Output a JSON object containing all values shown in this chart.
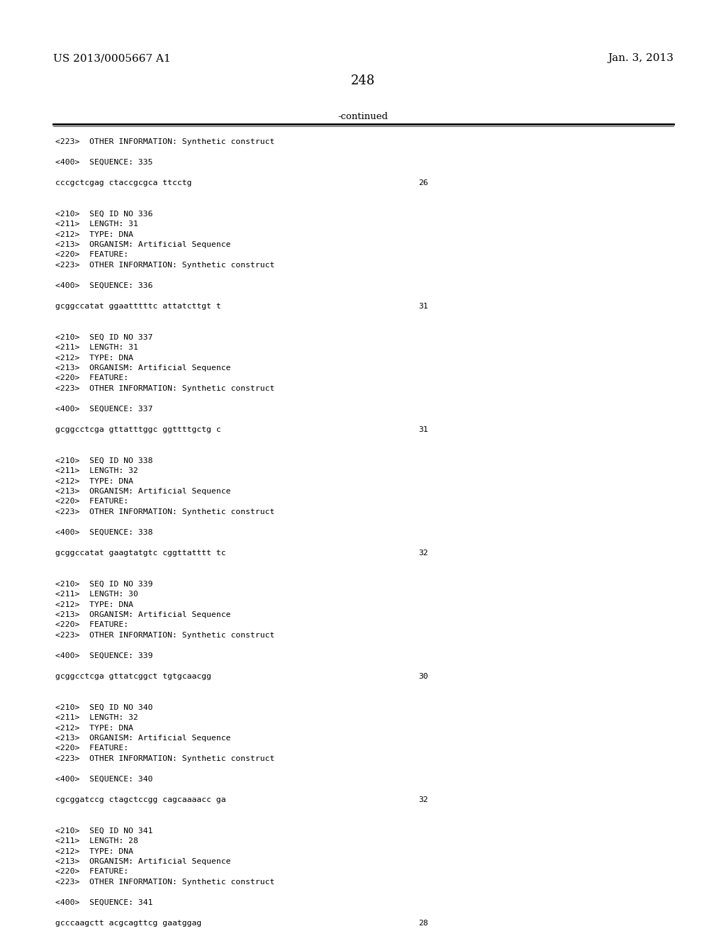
{
  "background_color": "#ffffff",
  "header_left": "US 2013/0005667 A1",
  "header_right": "Jan. 3, 2013",
  "page_number": "248",
  "continued_text": "-continued",
  "lines": [
    [
      "<223>  OTHER INFORMATION: Synthetic construct",
      false,
      null
    ],
    [
      "",
      false,
      null
    ],
    [
      "<400>  SEQUENCE: 335",
      false,
      null
    ],
    [
      "",
      false,
      null
    ],
    [
      "cccgctcgag ctaccgcgca ttcctg",
      false,
      "26"
    ],
    [
      "",
      false,
      null
    ],
    [
      "",
      false,
      null
    ],
    [
      "<210>  SEQ ID NO 336",
      false,
      null
    ],
    [
      "<211>  LENGTH: 31",
      false,
      null
    ],
    [
      "<212>  TYPE: DNA",
      false,
      null
    ],
    [
      "<213>  ORGANISM: Artificial Sequence",
      false,
      null
    ],
    [
      "<220>  FEATURE:",
      false,
      null
    ],
    [
      "<223>  OTHER INFORMATION: Synthetic construct",
      false,
      null
    ],
    [
      "",
      false,
      null
    ],
    [
      "<400>  SEQUENCE: 336",
      false,
      null
    ],
    [
      "",
      false,
      null
    ],
    [
      "gcggccatat ggaatttttc attatcttgt t",
      false,
      "31"
    ],
    [
      "",
      false,
      null
    ],
    [
      "",
      false,
      null
    ],
    [
      "<210>  SEQ ID NO 337",
      false,
      null
    ],
    [
      "<211>  LENGTH: 31",
      false,
      null
    ],
    [
      "<212>  TYPE: DNA",
      false,
      null
    ],
    [
      "<213>  ORGANISM: Artificial Sequence",
      false,
      null
    ],
    [
      "<220>  FEATURE:",
      false,
      null
    ],
    [
      "<223>  OTHER INFORMATION: Synthetic construct",
      false,
      null
    ],
    [
      "",
      false,
      null
    ],
    [
      "<400>  SEQUENCE: 337",
      false,
      null
    ],
    [
      "",
      false,
      null
    ],
    [
      "gcggcctcga gttatttggc ggttttgctg c",
      false,
      "31"
    ],
    [
      "",
      false,
      null
    ],
    [
      "",
      false,
      null
    ],
    [
      "<210>  SEQ ID NO 338",
      false,
      null
    ],
    [
      "<211>  LENGTH: 32",
      false,
      null
    ],
    [
      "<212>  TYPE: DNA",
      false,
      null
    ],
    [
      "<213>  ORGANISM: Artificial Sequence",
      false,
      null
    ],
    [
      "<220>  FEATURE:",
      false,
      null
    ],
    [
      "<223>  OTHER INFORMATION: Synthetic construct",
      false,
      null
    ],
    [
      "",
      false,
      null
    ],
    [
      "<400>  SEQUENCE: 338",
      false,
      null
    ],
    [
      "",
      false,
      null
    ],
    [
      "gcggccatat gaagtatgtc cggttatttt tc",
      false,
      "32"
    ],
    [
      "",
      false,
      null
    ],
    [
      "",
      false,
      null
    ],
    [
      "<210>  SEQ ID NO 339",
      false,
      null
    ],
    [
      "<211>  LENGTH: 30",
      false,
      null
    ],
    [
      "<212>  TYPE: DNA",
      false,
      null
    ],
    [
      "<213>  ORGANISM: Artificial Sequence",
      false,
      null
    ],
    [
      "<220>  FEATURE:",
      false,
      null
    ],
    [
      "<223>  OTHER INFORMATION: Synthetic construct",
      false,
      null
    ],
    [
      "",
      false,
      null
    ],
    [
      "<400>  SEQUENCE: 339",
      false,
      null
    ],
    [
      "",
      false,
      null
    ],
    [
      "gcggcctcga gttatcggct tgtgcaacgg",
      false,
      "30"
    ],
    [
      "",
      false,
      null
    ],
    [
      "",
      false,
      null
    ],
    [
      "<210>  SEQ ID NO 340",
      false,
      null
    ],
    [
      "<211>  LENGTH: 32",
      false,
      null
    ],
    [
      "<212>  TYPE: DNA",
      false,
      null
    ],
    [
      "<213>  ORGANISM: Artificial Sequence",
      false,
      null
    ],
    [
      "<220>  FEATURE:",
      false,
      null
    ],
    [
      "<223>  OTHER INFORMATION: Synthetic construct",
      false,
      null
    ],
    [
      "",
      false,
      null
    ],
    [
      "<400>  SEQUENCE: 340",
      false,
      null
    ],
    [
      "",
      false,
      null
    ],
    [
      "cgcggatccg ctagctccgg cagcaaaacc ga",
      false,
      "32"
    ],
    [
      "",
      false,
      null
    ],
    [
      "",
      false,
      null
    ],
    [
      "<210>  SEQ ID NO 341",
      false,
      null
    ],
    [
      "<211>  LENGTH: 28",
      false,
      null
    ],
    [
      "<212>  TYPE: DNA",
      false,
      null
    ],
    [
      "<213>  ORGANISM: Artificial Sequence",
      false,
      null
    ],
    [
      "<220>  FEATURE:",
      false,
      null
    ],
    [
      "<223>  OTHER INFORMATION: Synthetic construct",
      false,
      null
    ],
    [
      "",
      false,
      null
    ],
    [
      "<400>  SEQUENCE: 341",
      false,
      null
    ],
    [
      "",
      false,
      null
    ],
    [
      "gcccaagctt acgcagttcg gaatggag",
      false,
      "28"
    ]
  ]
}
